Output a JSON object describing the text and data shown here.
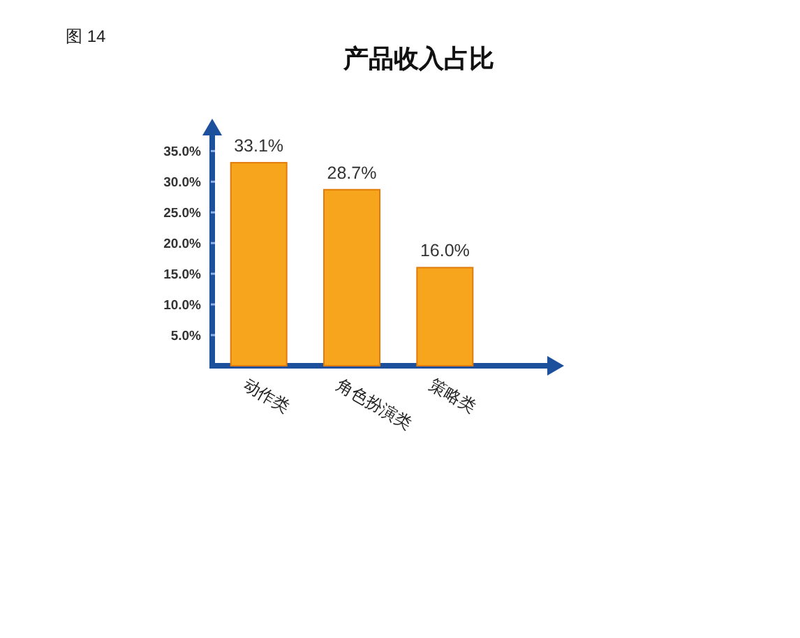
{
  "chart_data": {
    "type": "bar",
    "title": "产品收入占比",
    "annotations": [
      "图 14"
    ],
    "categories": [
      "动作类",
      "角色扮演类",
      "策略类"
    ],
    "values": [
      33.1,
      28.7,
      16.0
    ],
    "value_labels": [
      "33.1%",
      "28.7%",
      "16.0%"
    ],
    "color": "#f7a51c",
    "ylim": [
      0,
      38
    ],
    "yticks": [
      {
        "value": 5,
        "label": "5.0%"
      },
      {
        "value": 10,
        "label": "10.0%"
      },
      {
        "value": 15,
        "label": "15.0%"
      },
      {
        "value": 20,
        "label": "20.0%"
      },
      {
        "value": 25,
        "label": "25.0%"
      },
      {
        "value": 30,
        "label": "30.0%"
      },
      {
        "value": 35,
        "label": "35.0%"
      }
    ]
  }
}
